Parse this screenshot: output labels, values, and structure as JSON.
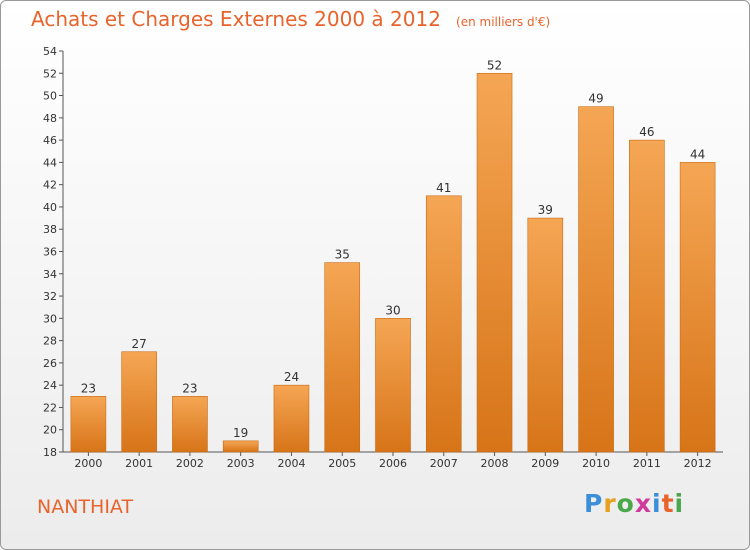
{
  "header": {
    "title": "Achats et Charges Externes 2000 à 2012",
    "unit": "(en milliers d'€)"
  },
  "footer": {
    "commune": "NANTHIAT",
    "logo_letters": [
      "P",
      "r",
      "o",
      "x",
      "i",
      "t",
      "i"
    ],
    "logo_colors": [
      "#3a8fd8",
      "#e8a020",
      "#4aa84a",
      "#d03a9a",
      "#3a8fd8",
      "#e8642c",
      "#4aa84a"
    ]
  },
  "colors": {
    "bar_top": "#f5a654",
    "bar_bottom": "#d77418",
    "text_accent": "#e8642c"
  },
  "chart_data": {
    "type": "bar",
    "title": "Achats et Charges Externes 2000 à 2012",
    "subtitle": "(en milliers d'€)",
    "categories": [
      "2000",
      "2001",
      "2002",
      "2003",
      "2004",
      "2005",
      "2006",
      "2007",
      "2008",
      "2009",
      "2010",
      "2011",
      "2012"
    ],
    "values": [
      23,
      27,
      23,
      19,
      24,
      35,
      30,
      41,
      52,
      39,
      49,
      46,
      44
    ],
    "ylim": [
      18,
      54
    ],
    "yticks": [
      18,
      20,
      22,
      24,
      26,
      28,
      30,
      32,
      34,
      36,
      38,
      40,
      42,
      44,
      46,
      48,
      50,
      52,
      54
    ],
    "grid": false,
    "xlabel": "",
    "ylabel": ""
  }
}
